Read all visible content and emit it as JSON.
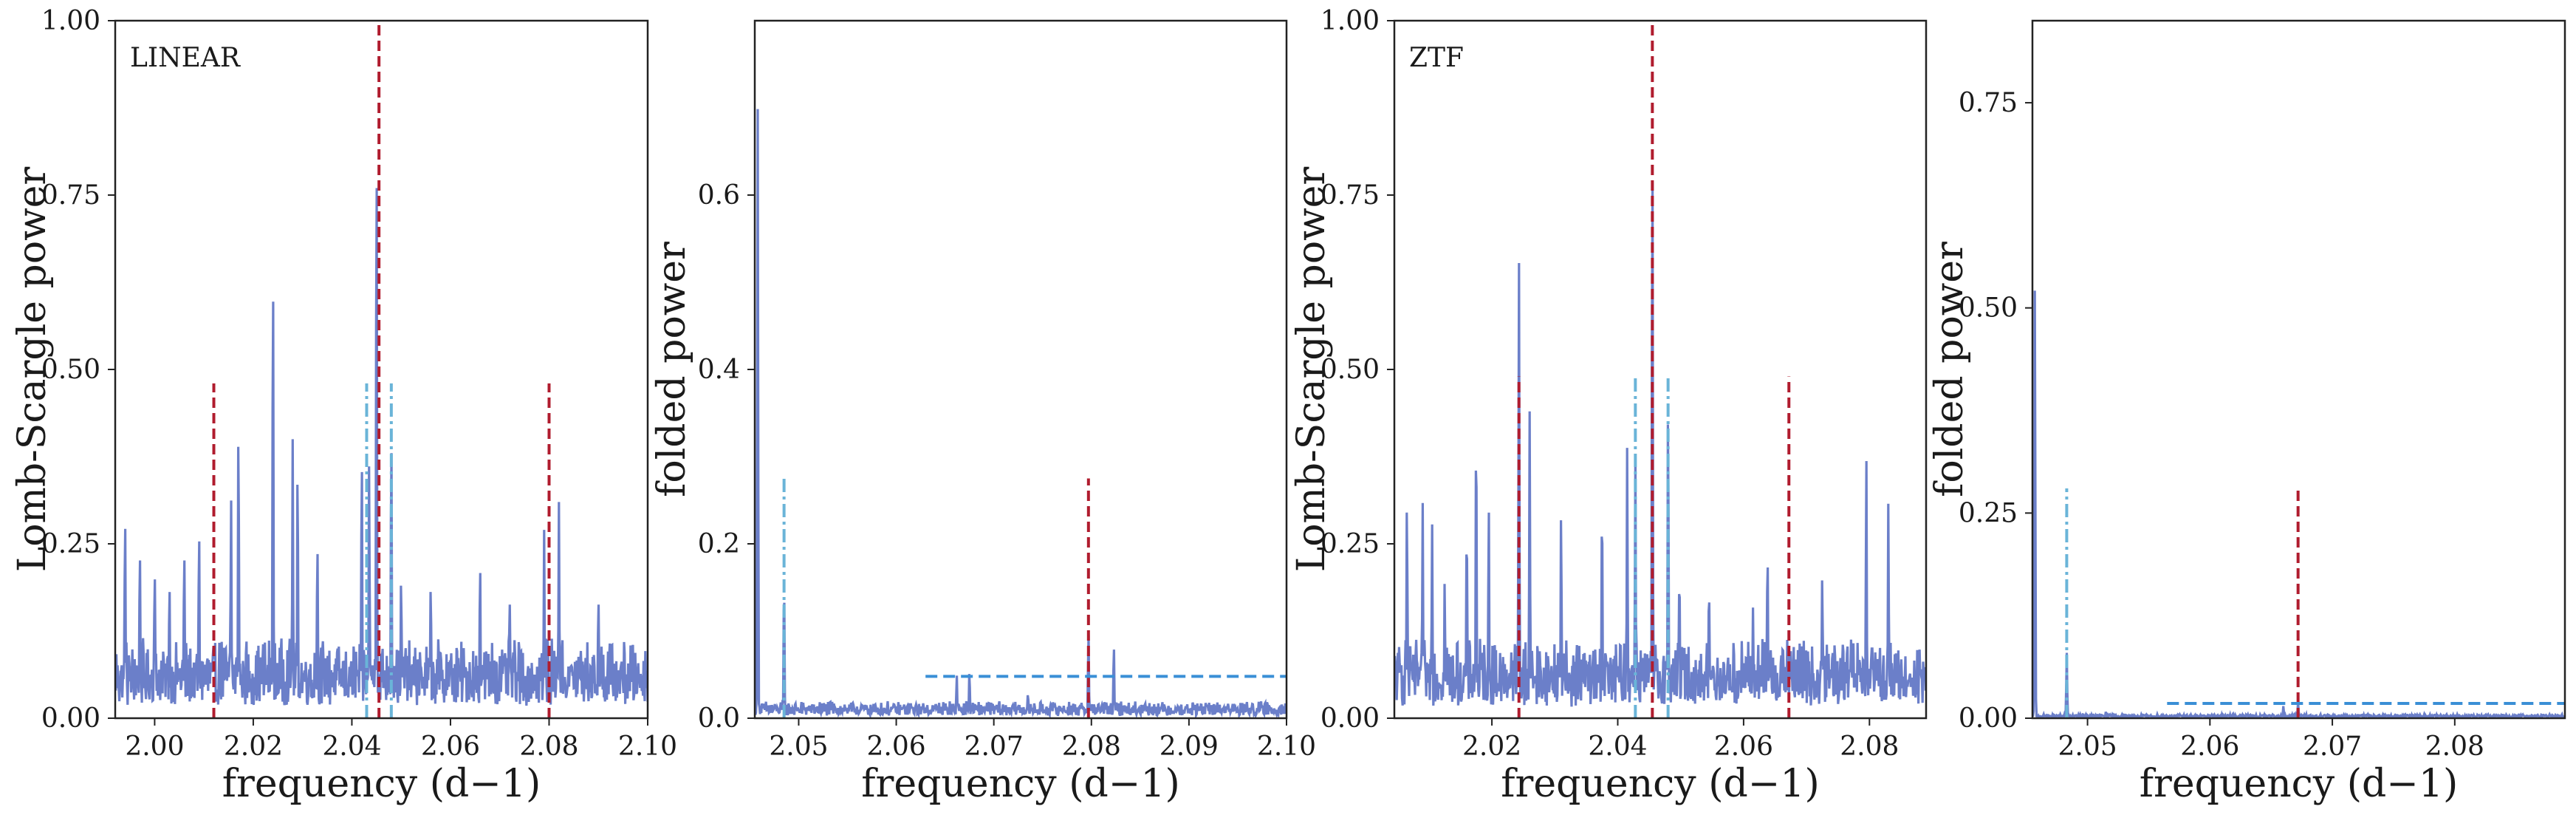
{
  "figure": {
    "panels": [
      {
        "id": "p1",
        "tag": "LINEAR",
        "xlabel": "frequency (d−1)",
        "ylabel": "Lomb-Scargle power"
      },
      {
        "id": "p2",
        "tag": "",
        "xlabel": "frequency (d−1)",
        "ylabel": "folded power"
      },
      {
        "id": "p3",
        "tag": "ZTF",
        "xlabel": "frequency (d−1)",
        "ylabel": "Lomb-Scargle power"
      },
      {
        "id": "p4",
        "tag": "",
        "xlabel": "frequency (d−1)",
        "ylabel": "folded power"
      }
    ]
  },
  "colors": {
    "periodogram": "#6b7fc9",
    "main_marker": "#b01c2e",
    "alias_marker": "#6ab4d8",
    "threshold": "#3a8fd6",
    "axes": "#222222"
  },
  "chart_data": [
    {
      "type": "line",
      "title": "",
      "label": "LINEAR",
      "xlabel": "frequency (d−1)",
      "ylabel": "Lomb-Scargle power",
      "xlim": [
        1.992,
        2.1
      ],
      "ylim": [
        0,
        1.0
      ],
      "xticks": [
        2.0,
        2.02,
        2.04,
        2.06,
        2.08,
        2.1
      ],
      "xtick_labels": [
        "2.00",
        "2.02",
        "2.04",
        "2.06",
        "2.08",
        "2.10"
      ],
      "yticks": [
        0,
        0.25,
        0.5,
        0.75,
        1.0
      ],
      "ytick_labels": [
        "0.00",
        "0.25",
        "0.50",
        "0.75",
        "1.00"
      ],
      "series": [
        {
          "values_description": "noisy periodogram",
          "x": [
            1.994,
            1.997,
            2.0,
            2.003,
            2.006,
            2.009,
            2.0155,
            2.017,
            2.024,
            2.028,
            2.029,
            2.033,
            2.042,
            2.0435,
            2.045,
            2.048,
            2.05,
            2.056,
            2.066,
            2.072,
            2.079,
            2.082,
            2.09
          ],
          "peaks": [
            0.3,
            0.25,
            0.22,
            0.2,
            0.25,
            0.28,
            0.32,
            0.43,
            0.66,
            0.4,
            0.37,
            0.26,
            0.39,
            0.37,
            0.84,
            0.42,
            0.21,
            0.2,
            0.23,
            0.18,
            0.27,
            0.31,
            0.18
          ],
          "noise_level": 0.07
        }
      ],
      "vlines": [
        {
          "x": 2.012,
          "height": 0.48,
          "style": "dashed",
          "color": "main"
        },
        {
          "x": 2.0455,
          "height": 1.0,
          "style": "dashed",
          "color": "main"
        },
        {
          "x": 2.08,
          "height": 0.48,
          "style": "dashed",
          "color": "main"
        },
        {
          "x": 2.043,
          "height": 0.48,
          "style": "dashdot",
          "color": "alias"
        },
        {
          "x": 2.048,
          "height": 0.48,
          "style": "dashdot",
          "color": "alias"
        }
      ],
      "hlines": []
    },
    {
      "type": "line",
      "title": "",
      "label": "",
      "xlabel": "frequency (d−1)",
      "ylabel": "folded power",
      "xlim": [
        2.0455,
        2.1
      ],
      "ylim": [
        0,
        0.8
      ],
      "xticks": [
        2.05,
        2.06,
        2.07,
        2.08,
        2.09,
        2.1
      ],
      "xtick_labels": [
        "2.05",
        "2.06",
        "2.07",
        "2.08",
        "2.09",
        "2.10"
      ],
      "yticks": [
        0,
        0.2,
        0.4,
        0.6
      ],
      "ytick_labels": [
        "0.0",
        "0.2",
        "0.4",
        "0.6"
      ],
      "series": [
        {
          "values_description": "folded power",
          "x": [
            2.0458,
            2.0485,
            2.0662,
            2.0675,
            2.0735,
            2.0797,
            2.0823,
            2.0855
          ],
          "peaks": [
            0.7,
            0.16,
            0.05,
            0.055,
            0.03,
            0.1,
            0.085,
            0.02
          ],
          "noise_level": 0.012
        }
      ],
      "vlines": [
        {
          "x": 2.0485,
          "height": 0.275,
          "style": "dashdot",
          "color": "alias"
        },
        {
          "x": 2.0797,
          "height": 0.275,
          "style": "dashed",
          "color": "main"
        }
      ],
      "hlines": [
        {
          "y": 0.048,
          "x0": 2.063,
          "x1": 2.1,
          "style": "dashed",
          "color": "threshold"
        }
      ]
    },
    {
      "type": "line",
      "title": "",
      "label": "ZTF",
      "xlabel": "frequency (d−1)",
      "ylabel": "Lomb-Scargle power",
      "xlim": [
        2.0045,
        2.089
      ],
      "ylim": [
        0,
        1.0
      ],
      "xticks": [
        2.02,
        2.04,
        2.06,
        2.08
      ],
      "xtick_labels": [
        "2.02",
        "2.04",
        "2.06",
        "2.08"
      ],
      "yticks": [
        0,
        0.25,
        0.5,
        0.75,
        1.0
      ],
      "ytick_labels": [
        "0.00",
        "0.25",
        "0.50",
        "0.75",
        "1.00"
      ],
      "series": [
        {
          "values_description": "noisy periodogram",
          "x": [
            2.0065,
            2.009,
            2.0105,
            2.0125,
            2.016,
            2.0175,
            2.0195,
            2.0243,
            2.026,
            2.031,
            2.0375,
            2.0415,
            2.0428,
            2.0455,
            2.048,
            2.0498,
            2.0545,
            2.0615,
            2.0638,
            2.0725,
            2.0795,
            2.083
          ],
          "peaks": [
            0.32,
            0.31,
            0.28,
            0.2,
            0.29,
            0.43,
            0.31,
            0.66,
            0.44,
            0.3,
            0.32,
            0.39,
            0.38,
            0.84,
            0.46,
            0.22,
            0.2,
            0.16,
            0.25,
            0.21,
            0.38,
            0.31
          ],
          "noise_level": 0.07
        }
      ],
      "vlines": [
        {
          "x": 2.0243,
          "height": 0.49,
          "style": "dashed",
          "color": "main"
        },
        {
          "x": 2.0455,
          "height": 1.0,
          "style": "dashed",
          "color": "main"
        },
        {
          "x": 2.0672,
          "height": 0.49,
          "style": "dashed",
          "color": "main"
        },
        {
          "x": 2.0428,
          "height": 0.49,
          "style": "dashdot",
          "color": "alias"
        },
        {
          "x": 2.048,
          "height": 0.49,
          "style": "dashdot",
          "color": "alias"
        }
      ],
      "hlines": []
    },
    {
      "type": "line",
      "title": "",
      "label": "",
      "xlabel": "frequency (d−1)",
      "ylabel": "folded power",
      "xlim": [
        2.0455,
        2.089
      ],
      "ylim": [
        0,
        0.85
      ],
      "xticks": [
        2.05,
        2.06,
        2.07,
        2.08
      ],
      "xtick_labels": [
        "2.05",
        "2.06",
        "2.07",
        "2.08"
      ],
      "yticks": [
        0,
        0.25,
        0.5,
        0.75
      ],
      "ytick_labels": [
        "0.00",
        "0.25",
        "0.50",
        "0.75"
      ],
      "series": [
        {
          "values_description": "folded power",
          "x": [
            2.0457,
            2.0483,
            2.0515,
            2.066,
            2.0672
          ],
          "peaks": [
            0.53,
            0.08,
            0.008,
            0.015,
            0.02
          ],
          "noise_level": 0.003
        }
      ],
      "vlines": [
        {
          "x": 2.0483,
          "height": 0.28,
          "style": "dashdot",
          "color": "alias"
        },
        {
          "x": 2.0672,
          "height": 0.28,
          "style": "dashed",
          "color": "main"
        }
      ],
      "hlines": [
        {
          "y": 0.018,
          "x0": 2.0565,
          "x1": 2.089,
          "style": "dashed",
          "color": "threshold"
        }
      ]
    }
  ]
}
